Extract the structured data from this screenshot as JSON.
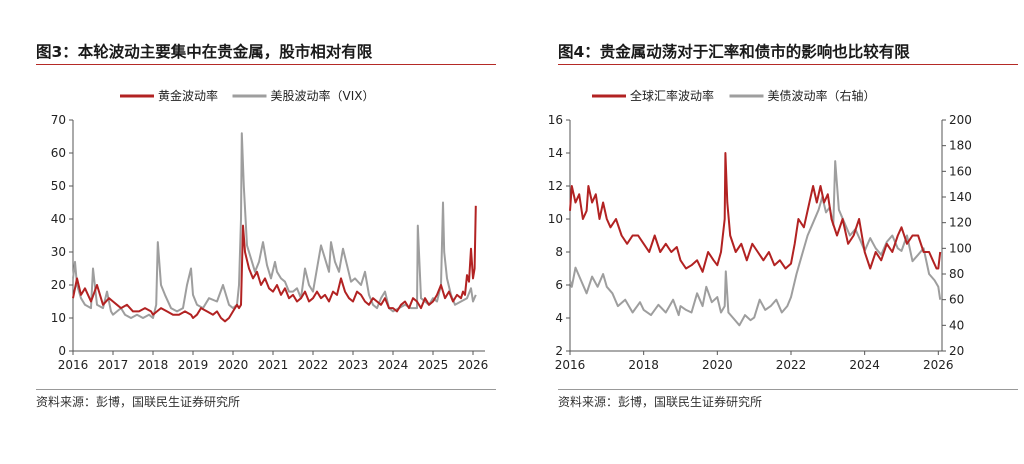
{
  "charts": [
    {
      "figure_title": "图3：本轮波动主要集中在贵金属，股市相对有限",
      "source": "资料来源：彭博，国联民生证券研究所",
      "chart_data": {
        "type": "line",
        "title": "图3：本轮波动主要集中在贵金属，股市相对有限",
        "xlabel": "",
        "ylabel": "",
        "xlim": [
          2016,
          2026.3
        ],
        "ylim": [
          0,
          70
        ],
        "yticks": [
          0,
          10,
          20,
          30,
          40,
          50,
          60,
          70
        ],
        "xticks": [
          2016,
          2017,
          2018,
          2019,
          2020,
          2021,
          2022,
          2023,
          2024,
          2025,
          2026
        ],
        "grid": false,
        "legend": "top-center",
        "series": [
          {
            "name": "黄金波动率",
            "color": "#b22222",
            "axis": "left",
            "x": [
              2016.0,
              2016.1,
              2016.2,
              2016.3,
              2016.45,
              2016.6,
              2016.75,
              2016.9,
              2017.0,
              2017.1,
              2017.2,
              2017.35,
              2017.5,
              2017.65,
              2017.8,
              2017.95,
              2018.0,
              2018.1,
              2018.2,
              2018.35,
              2018.5,
              2018.65,
              2018.8,
              2018.95,
              2019.0,
              2019.1,
              2019.2,
              2019.35,
              2019.5,
              2019.6,
              2019.7,
              2019.8,
              2019.9,
              2020.0,
              2020.1,
              2020.15,
              2020.2,
              2020.25,
              2020.3,
              2020.4,
              2020.5,
              2020.6,
              2020.7,
              2020.8,
              2020.9,
              2021.0,
              2021.1,
              2021.2,
              2021.3,
              2021.4,
              2021.5,
              2021.6,
              2021.7,
              2021.8,
              2021.9,
              2022.0,
              2022.1,
              2022.2,
              2022.3,
              2022.4,
              2022.5,
              2022.6,
              2022.7,
              2022.8,
              2022.9,
              2023.0,
              2023.1,
              2023.2,
              2023.3,
              2023.4,
              2023.5,
              2023.6,
              2023.7,
              2023.8,
              2023.9,
              2024.0,
              2024.1,
              2024.2,
              2024.3,
              2024.4,
              2024.5,
              2024.6,
              2024.7,
              2024.8,
              2024.9,
              2025.0,
              2025.1,
              2025.2,
              2025.3,
              2025.4,
              2025.5,
              2025.6,
              2025.7,
              2025.75,
              2025.8,
              2025.85,
              2025.9,
              2025.95,
              2026.0,
              2026.04,
              2026.07
            ],
            "y": [
              16,
              22,
              17,
              19,
              15,
              20,
              14,
              16,
              15,
              14,
              13,
              14,
              12,
              12,
              13,
              12,
              11,
              12,
              13,
              12,
              11,
              11,
              12,
              11,
              10,
              11,
              13,
              12,
              11,
              12,
              10,
              9,
              10,
              12,
              14,
              13,
              14,
              38,
              30,
              25,
              22,
              24,
              20,
              22,
              19,
              18,
              20,
              17,
              19,
              16,
              17,
              15,
              16,
              18,
              15,
              16,
              18,
              16,
              17,
              15,
              18,
              17,
              22,
              18,
              16,
              15,
              18,
              17,
              15,
              14,
              16,
              15,
              14,
              16,
              13,
              13,
              12,
              14,
              15,
              13,
              16,
              15,
              13,
              16,
              14,
              15,
              17,
              20,
              16,
              18,
              15,
              17,
              16,
              18,
              17,
              23,
              21,
              31,
              22,
              25,
              44
            ]
          },
          {
            "name": "美股波动率（VIX）",
            "color": "#9e9e9e",
            "axis": "left",
            "x": [
              2016.0,
              2016.05,
              2016.1,
              2016.2,
              2016.3,
              2016.45,
              2016.5,
              2016.6,
              2016.75,
              2016.85,
              2016.95,
              2017.0,
              2017.1,
              2017.2,
              2017.3,
              2017.45,
              2017.6,
              2017.75,
              2017.9,
              2018.0,
              2018.08,
              2018.12,
              2018.2,
              2018.3,
              2018.45,
              2018.6,
              2018.75,
              2018.85,
              2018.95,
              2019.0,
              2019.1,
              2019.25,
              2019.4,
              2019.6,
              2019.75,
              2019.9,
              2020.0,
              2020.1,
              2020.15,
              2020.2,
              2020.22,
              2020.27,
              2020.35,
              2020.45,
              2020.55,
              2020.65,
              2020.75,
              2020.85,
              2020.95,
              2021.05,
              2021.1,
              2021.2,
              2021.3,
              2021.4,
              2021.5,
              2021.6,
              2021.7,
              2021.8,
              2021.9,
              2022.0,
              2022.1,
              2022.2,
              2022.3,
              2022.4,
              2022.45,
              2022.55,
              2022.65,
              2022.75,
              2022.85,
              2022.95,
              2023.05,
              2023.2,
              2023.3,
              2023.4,
              2023.5,
              2023.6,
              2023.7,
              2023.8,
              2023.9,
              2024.0,
              2024.15,
              2024.3,
              2024.45,
              2024.6,
              2024.62,
              2024.7,
              2024.8,
              2024.9,
              2025.0,
              2025.1,
              2025.2,
              2025.25,
              2025.28,
              2025.35,
              2025.45,
              2025.55,
              2025.7,
              2025.85,
              2025.95,
              2026.0,
              2026.07
            ],
            "y": [
              22,
              27,
              20,
              16,
              14,
              13,
              25,
              14,
              13,
              18,
              12,
              11,
              12,
              13,
              11,
              10,
              11,
              10,
              11,
              10,
              14,
              33,
              20,
              17,
              13,
              12,
              13,
              20,
              25,
              17,
              14,
              13,
              16,
              15,
              20,
              14,
              13,
              14,
              20,
              40,
              66,
              50,
              32,
              28,
              24,
              27,
              33,
              26,
              22,
              27,
              24,
              22,
              21,
              18,
              18,
              19,
              16,
              25,
              20,
              18,
              25,
              32,
              28,
              24,
              33,
              27,
              24,
              31,
              26,
              21,
              22,
              20,
              24,
              17,
              14,
              13,
              16,
              18,
              13,
              12,
              13,
              14,
              13,
              13,
              38,
              16,
              15,
              14,
              16,
              15,
              20,
              45,
              30,
              22,
              17,
              14,
              15,
              16,
              19,
              15,
              17
            ]
          }
        ]
      }
    },
    {
      "figure_title": "图4：贵金属动荡对于汇率和债市的影响也比较有限",
      "source": "资料来源：彭博，国联民生证券研究所",
      "chart_data": {
        "type": "line",
        "title": "图4：贵金属动荡对于汇率和债市的影响也比较有限",
        "xlabel": "",
        "ylabel": "",
        "ylabel_right": "",
        "xlim": [
          2016,
          2026.1
        ],
        "ylim": [
          2,
          16
        ],
        "ylim_right": [
          20,
          200
        ],
        "yticks": [
          2,
          4,
          6,
          8,
          10,
          12,
          14,
          16
        ],
        "yticks_right": [
          20,
          40,
          60,
          80,
          100,
          120,
          140,
          160,
          180,
          200
        ],
        "xticks": [
          2016,
          2018,
          2020,
          2022,
          2024,
          2026
        ],
        "grid": false,
        "legend": "top-center",
        "series": [
          {
            "name": "全球汇率波动率",
            "color": "#b22222",
            "axis": "left",
            "x": [
              2016.0,
              2016.05,
              2016.15,
              2016.25,
              2016.35,
              2016.45,
              2016.5,
              2016.6,
              2016.7,
              2016.8,
              2016.9,
              2017.0,
              2017.1,
              2017.25,
              2017.4,
              2017.55,
              2017.7,
              2017.85,
              2018.0,
              2018.15,
              2018.3,
              2018.45,
              2018.6,
              2018.75,
              2018.9,
              2019.0,
              2019.15,
              2019.3,
              2019.45,
              2019.6,
              2019.75,
              2019.9,
              2020.0,
              2020.1,
              2020.2,
              2020.22,
              2020.27,
              2020.35,
              2020.5,
              2020.65,
              2020.8,
              2020.95,
              2021.1,
              2021.25,
              2021.4,
              2021.55,
              2021.7,
              2021.85,
              2022.0,
              2022.1,
              2022.2,
              2022.35,
              2022.5,
              2022.6,
              2022.7,
              2022.8,
              2022.9,
              2023.0,
              2023.1,
              2023.25,
              2023.4,
              2023.55,
              2023.7,
              2023.85,
              2024.0,
              2024.15,
              2024.3,
              2024.45,
              2024.6,
              2024.75,
              2024.9,
              2025.0,
              2025.15,
              2025.3,
              2025.45,
              2025.6,
              2025.75,
              2025.85,
              2025.95,
              2026.0,
              2026.05
            ],
            "y": [
              10.5,
              12,
              11,
              11.5,
              10,
              10.5,
              12,
              11,
              11.5,
              10,
              11,
              10,
              9.5,
              10,
              9,
              8.5,
              9,
              9,
              8.5,
              8,
              9,
              8,
              8.5,
              8,
              8.3,
              7.5,
              7,
              7.2,
              7.5,
              6.8,
              8,
              7.5,
              7.2,
              8,
              10,
              14,
              11,
              9,
              8,
              8.5,
              7.5,
              8.5,
              8,
              7.5,
              8,
              7.2,
              7.5,
              7,
              7.3,
              8.5,
              10,
              9.5,
              11,
              12,
              11,
              12,
              11,
              11.5,
              10,
              9,
              10,
              8.5,
              9,
              10,
              8,
              7,
              8,
              7.5,
              8.5,
              8,
              9,
              9.5,
              8.5,
              9,
              9,
              8,
              8,
              7.5,
              7,
              7,
              8
            ]
          },
          {
            "name": "美债波动率（右轴）",
            "color": "#9e9e9e",
            "axis": "right",
            "x": [
              2016.0,
              2016.05,
              2016.15,
              2016.3,
              2016.45,
              2016.6,
              2016.75,
              2016.9,
              2017.0,
              2017.15,
              2017.3,
              2017.5,
              2017.7,
              2017.9,
              2018.0,
              2018.2,
              2018.4,
              2018.6,
              2018.8,
              2018.95,
              2019.0,
              2019.15,
              2019.3,
              2019.45,
              2019.6,
              2019.7,
              2019.85,
              2020.0,
              2020.1,
              2020.2,
              2020.23,
              2020.3,
              2020.45,
              2020.6,
              2020.75,
              2020.9,
              2021.0,
              2021.15,
              2021.3,
              2021.45,
              2021.6,
              2021.75,
              2021.9,
              2022.0,
              2022.15,
              2022.3,
              2022.45,
              2022.6,
              2022.75,
              2022.85,
              2022.95,
              2023.05,
              2023.15,
              2023.2,
              2023.3,
              2023.45,
              2023.6,
              2023.75,
              2023.9,
              2024.0,
              2024.15,
              2024.3,
              2024.45,
              2024.6,
              2024.75,
              2024.9,
              2025.0,
              2025.15,
              2025.3,
              2025.45,
              2025.6,
              2025.75,
              2025.9,
              2026.0,
              2026.05
            ],
            "y": [
              75,
              70,
              85,
              75,
              65,
              78,
              70,
              80,
              70,
              65,
              55,
              60,
              50,
              58,
              52,
              48,
              56,
              50,
              60,
              48,
              55,
              52,
              50,
              65,
              55,
              70,
              58,
              62,
              50,
              55,
              82,
              50,
              45,
              40,
              48,
              44,
              46,
              60,
              52,
              55,
              60,
              50,
              55,
              62,
              80,
              95,
              110,
              120,
              130,
              140,
              128,
              132,
              118,
              168,
              130,
              120,
              110,
              115,
              105,
              98,
              108,
              100,
              95,
              105,
              110,
              100,
              98,
              110,
              90,
              95,
              100,
              80,
              75,
              70,
              60
            ]
          }
        ]
      }
    }
  ]
}
